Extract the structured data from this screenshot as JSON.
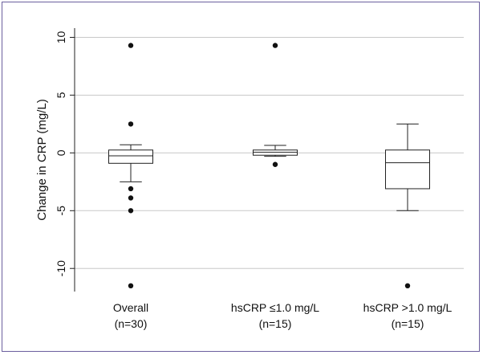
{
  "chart_data": {
    "type": "box",
    "ylabel": "Change in CRP (mg/L)",
    "ylim": [
      -12,
      10.8
    ],
    "yticks": [
      10,
      5,
      0,
      -5,
      -10
    ],
    "grid": true,
    "categories": [
      {
        "line1": "Overall",
        "line2": "(n=30)"
      },
      {
        "line1": "hsCRP ≤1.0 mg/L",
        "line2": "(n=15)"
      },
      {
        "line1": "hsCRP >1.0 mg/L",
        "line2": "(n=15)"
      }
    ],
    "boxes": [
      {
        "whisker_low": -2.5,
        "q1": -0.9,
        "median": -0.25,
        "q3": 0.25,
        "whisker_high": 0.7,
        "outliers": [
          9.3,
          2.5,
          -3.1,
          -3.9,
          -5.0,
          -11.5
        ]
      },
      {
        "whisker_low": -0.3,
        "q1": -0.2,
        "median": 0.05,
        "q3": 0.25,
        "whisker_high": 0.65,
        "outliers": [
          9.3,
          -1.0
        ]
      },
      {
        "whisker_low": -5.0,
        "q1": -3.1,
        "median": -0.85,
        "q3": 0.25,
        "whisker_high": 2.5,
        "outliers": [
          -11.5
        ]
      }
    ]
  }
}
